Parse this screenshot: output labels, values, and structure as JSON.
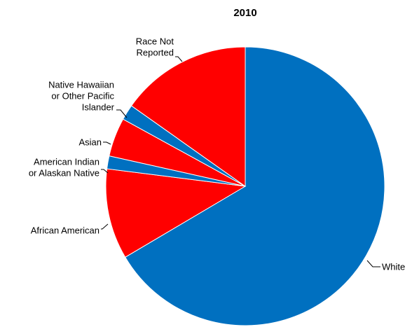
{
  "chart_data": {
    "type": "pie",
    "title": "2010",
    "slices": [
      {
        "label": [
          "White"
        ],
        "value": 66.5,
        "color": "#0070C0"
      },
      {
        "label": [
          "African American"
        ],
        "value": 10.5,
        "color": "#FF0000"
      },
      {
        "label": [
          "American Indian",
          "or Alaskan Native"
        ],
        "value": 1.5,
        "color": "#0070C0"
      },
      {
        "label": [
          "Asian"
        ],
        "value": 4.5,
        "color": "#FF0000"
      },
      {
        "label": [
          "Native Hawaiian",
          "or Other Pacific",
          "Islander"
        ],
        "value": 1.8,
        "color": "#0070C0"
      },
      {
        "label": [
          "Race Not",
          "Reported"
        ],
        "value": 15.2,
        "color": "#FF0000"
      }
    ],
    "start": "12 o'clock",
    "direction": "clockwise",
    "legend": "none"
  }
}
